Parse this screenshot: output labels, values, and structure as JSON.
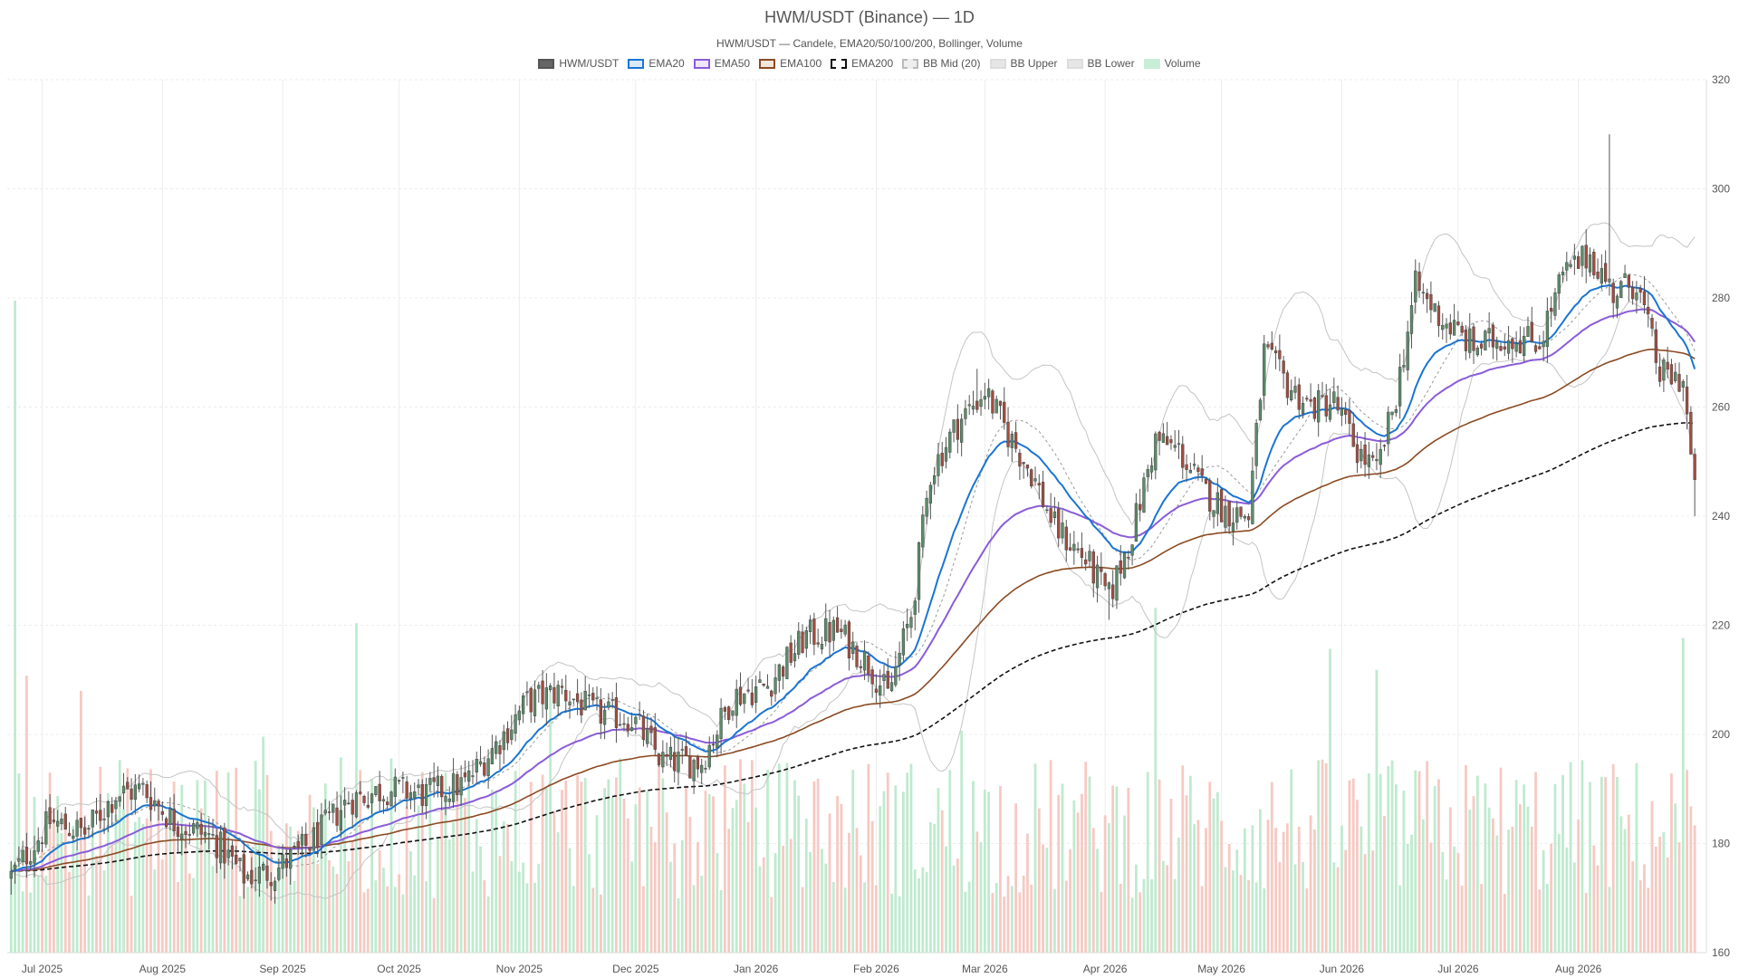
{
  "title": "HWM/USDT (Binance) — 1D",
  "subtitle": "HWM/USDT — Candele, EMA20/50/100/200, Bollinger, Volume",
  "legend": [
    {
      "label": "HWM/USDT",
      "fill": "#666666",
      "stroke": "#555555",
      "dash": false
    },
    {
      "label": "EMA20",
      "fill": "#dbe9f5",
      "stroke": "#1a75d2",
      "dash": false
    },
    {
      "label": "EMA50",
      "fill": "#efe6fb",
      "stroke": "#8a5cd9",
      "dash": false
    },
    {
      "label": "EMA100",
      "fill": "#f3e6dc",
      "stroke": "#8b4a22",
      "dash": false
    },
    {
      "label": "EMA200",
      "fill": "#ffffff",
      "stroke": "#111111",
      "dash": true
    },
    {
      "label": "BB Mid (20)",
      "fill": "#eeeeee",
      "stroke": "#bbbbbb",
      "dash": true
    },
    {
      "label": "BB Upper",
      "fill": "#e6e6e6",
      "stroke": "#dddddd",
      "dash": false
    },
    {
      "label": "BB Lower",
      "fill": "#e6e6e6",
      "stroke": "#dddddd",
      "dash": false
    },
    {
      "label": "Volume",
      "fill": "#c8eed8",
      "stroke": "#c8eed8",
      "dash": false
    }
  ],
  "colors": {
    "up": "#5b8c6a",
    "down": "#a34c3f",
    "vol_up": "#bfeacf",
    "vol_down": "#f6c9c2",
    "ema20": "#1a75d2",
    "ema50": "#8a5cd9",
    "ema100": "#8b4a22",
    "ema200": "#111111",
    "bb": "#c4c4c4",
    "bb_mid": "#999999",
    "grid": "#ececec"
  },
  "chart_data": {
    "type": "candlestick",
    "symbol": "HWM/USDT",
    "exchange": "Binance",
    "timeframe": "1D",
    "x_range": [
      "2025-06-22",
      "2026-09-03"
    ],
    "ylim": [
      160,
      320
    ],
    "yticks": [
      160,
      180,
      200,
      220,
      240,
      260,
      280,
      300,
      320
    ],
    "y_axis_side": "right",
    "xticks": [
      {
        "label": "Jul 2025",
        "date": "2025-07-01"
      },
      {
        "label": "Aug 2025",
        "date": "2025-08-01"
      },
      {
        "label": "Sep 2025",
        "date": "2025-09-01"
      },
      {
        "label": "Oct 2025",
        "date": "2025-10-01"
      },
      {
        "label": "Nov 2025",
        "date": "2025-11-01"
      },
      {
        "label": "Dec 2025",
        "date": "2025-12-01"
      },
      {
        "label": "Jan 2026",
        "date": "2026-01-01"
      },
      {
        "label": "Feb 2026",
        "date": "2026-02-01"
      },
      {
        "label": "Mar 2026",
        "date": "2026-03-01"
      },
      {
        "label": "Apr 2026",
        "date": "2026-04-01"
      },
      {
        "label": "May 2026",
        "date": "2026-05-01"
      },
      {
        "label": "Jun 2026",
        "date": "2026-06-01"
      },
      {
        "label": "Jul 2026",
        "date": "2026-07-01"
      },
      {
        "label": "Aug 2026",
        "date": "2026-08-01"
      }
    ],
    "grid": true,
    "legend_position": "top-center",
    "close_anchors": [
      {
        "date": "2025-06-23",
        "close": 174
      },
      {
        "date": "2025-06-28",
        "close": 179
      },
      {
        "date": "2025-07-03",
        "close": 184
      },
      {
        "date": "2025-07-12",
        "close": 182
      },
      {
        "date": "2025-07-20",
        "close": 189
      },
      {
        "date": "2025-07-27",
        "close": 190
      },
      {
        "date": "2025-08-04",
        "close": 184
      },
      {
        "date": "2025-08-14",
        "close": 181
      },
      {
        "date": "2025-08-22",
        "close": 174
      },
      {
        "date": "2025-08-30",
        "close": 175
      },
      {
        "date": "2025-09-08",
        "close": 180
      },
      {
        "date": "2025-09-18",
        "close": 188
      },
      {
        "date": "2025-09-28",
        "close": 190
      },
      {
        "date": "2025-10-08",
        "close": 189
      },
      {
        "date": "2025-10-18",
        "close": 191
      },
      {
        "date": "2025-10-27",
        "close": 199
      },
      {
        "date": "2025-11-03",
        "close": 206
      },
      {
        "date": "2025-11-12",
        "close": 208
      },
      {
        "date": "2025-11-20",
        "close": 204
      },
      {
        "date": "2025-11-30",
        "close": 203
      },
      {
        "date": "2025-12-08",
        "close": 195
      },
      {
        "date": "2025-12-18",
        "close": 195
      },
      {
        "date": "2025-12-26",
        "close": 207
      },
      {
        "date": "2026-01-04",
        "close": 209
      },
      {
        "date": "2026-01-14",
        "close": 218
      },
      {
        "date": "2026-01-22",
        "close": 219
      },
      {
        "date": "2026-01-30",
        "close": 213
      },
      {
        "date": "2026-02-04",
        "close": 207
      },
      {
        "date": "2026-02-10",
        "close": 222
      },
      {
        "date": "2026-02-15",
        "close": 248
      },
      {
        "date": "2026-02-22",
        "close": 257
      },
      {
        "date": "2026-03-01",
        "close": 263
      },
      {
        "date": "2026-03-07",
        "close": 255
      },
      {
        "date": "2026-03-13",
        "close": 248
      },
      {
        "date": "2026-03-19",
        "close": 238
      },
      {
        "date": "2026-03-27",
        "close": 232
      },
      {
        "date": "2026-04-02",
        "close": 225
      },
      {
        "date": "2026-04-08",
        "close": 237
      },
      {
        "date": "2026-04-14",
        "close": 254
      },
      {
        "date": "2026-04-20",
        "close": 252
      },
      {
        "date": "2026-04-26",
        "close": 245
      },
      {
        "date": "2026-05-02",
        "close": 241
      },
      {
        "date": "2026-05-08",
        "close": 240
      },
      {
        "date": "2026-05-12",
        "close": 270
      },
      {
        "date": "2026-05-18",
        "close": 264
      },
      {
        "date": "2026-05-24",
        "close": 260
      },
      {
        "date": "2026-05-30",
        "close": 261
      },
      {
        "date": "2026-06-05",
        "close": 252
      },
      {
        "date": "2026-06-10",
        "close": 248
      },
      {
        "date": "2026-06-15",
        "close": 262
      },
      {
        "date": "2026-06-20",
        "close": 282
      },
      {
        "date": "2026-06-27",
        "close": 276
      },
      {
        "date": "2026-07-05",
        "close": 271
      },
      {
        "date": "2026-07-14",
        "close": 273
      },
      {
        "date": "2026-07-22",
        "close": 272
      },
      {
        "date": "2026-07-28",
        "close": 284
      },
      {
        "date": "2026-08-04",
        "close": 288
      },
      {
        "date": "2026-08-10",
        "close": 281
      },
      {
        "date": "2026-08-16",
        "close": 283
      },
      {
        "date": "2026-08-22",
        "close": 266
      },
      {
        "date": "2026-08-28",
        "close": 265
      },
      {
        "date": "2026-08-31",
        "close": 244
      }
    ],
    "ema_end_values": {
      "EMA20": 273,
      "EMA50": 274,
      "EMA100": 265,
      "EMA200": 248
    },
    "bollinger_period": 20,
    "volume_note": "Volume bars share the lower part of the price pane; a large spike near 2025-06-24."
  }
}
